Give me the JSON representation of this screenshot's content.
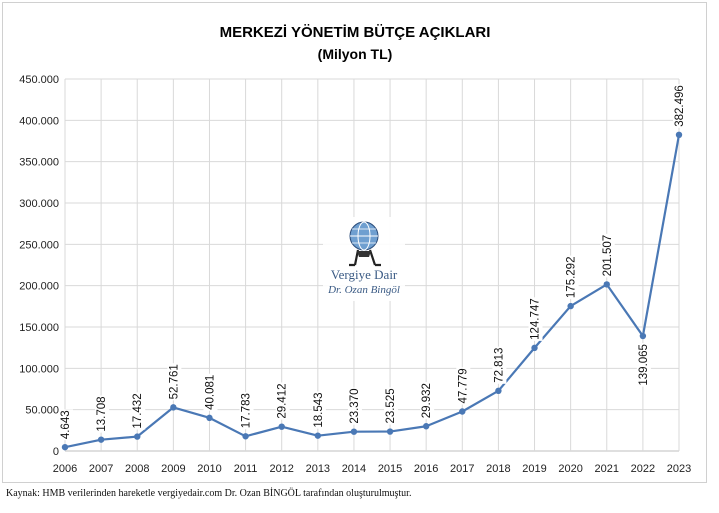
{
  "chart_data": {
    "type": "line",
    "title": "MERKEZİ YÖNETİM BÜTÇE AÇIKLARI",
    "subtitle": "(Milyon TL)",
    "xlabel": "",
    "ylabel": "",
    "ylim": [
      0,
      450000
    ],
    "y_ticks": [
      0,
      50000,
      100000,
      150000,
      200000,
      250000,
      300000,
      350000,
      400000,
      450000
    ],
    "y_tick_labels": [
      "0",
      "50.000",
      "100.000",
      "150.000",
      "200.000",
      "250.000",
      "300.000",
      "350.000",
      "400.000",
      "450.000"
    ],
    "grid": true,
    "categories": [
      "2006",
      "2007",
      "2008",
      "2009",
      "2010",
      "2011",
      "2012",
      "2013",
      "2014",
      "2015",
      "2016",
      "2017",
      "2018",
      "2019",
      "2020",
      "2021",
      "2022",
      "2023"
    ],
    "values": [
      4643,
      13708,
      17432,
      52761,
      40081,
      17783,
      29412,
      18543,
      23370,
      23525,
      29932,
      47779,
      72813,
      124747,
      175292,
      201507,
      139065,
      382496
    ],
    "data_labels": [
      "4.643",
      "13.708",
      "17.432",
      "52.761",
      "40.081",
      "17.783",
      "29.412",
      "18.543",
      "23.370",
      "23.525",
      "29.932",
      "47.779",
      "72.813",
      "124.747",
      "175.292",
      "201.507",
      "139.065",
      "382.496"
    ],
    "line_color": "#4a78b5",
    "grid_color": "#d9d9d9"
  },
  "watermark": {
    "line1": "Vergiye Dair",
    "line2": "Dr. Ozan Bingöl",
    "icon": "globe-atlas-icon"
  },
  "source": "Kaynak: HMB verilerinden hareketle vergiyedair.com Dr. Ozan BİNGÖL tarafından oluşturulmuştur."
}
